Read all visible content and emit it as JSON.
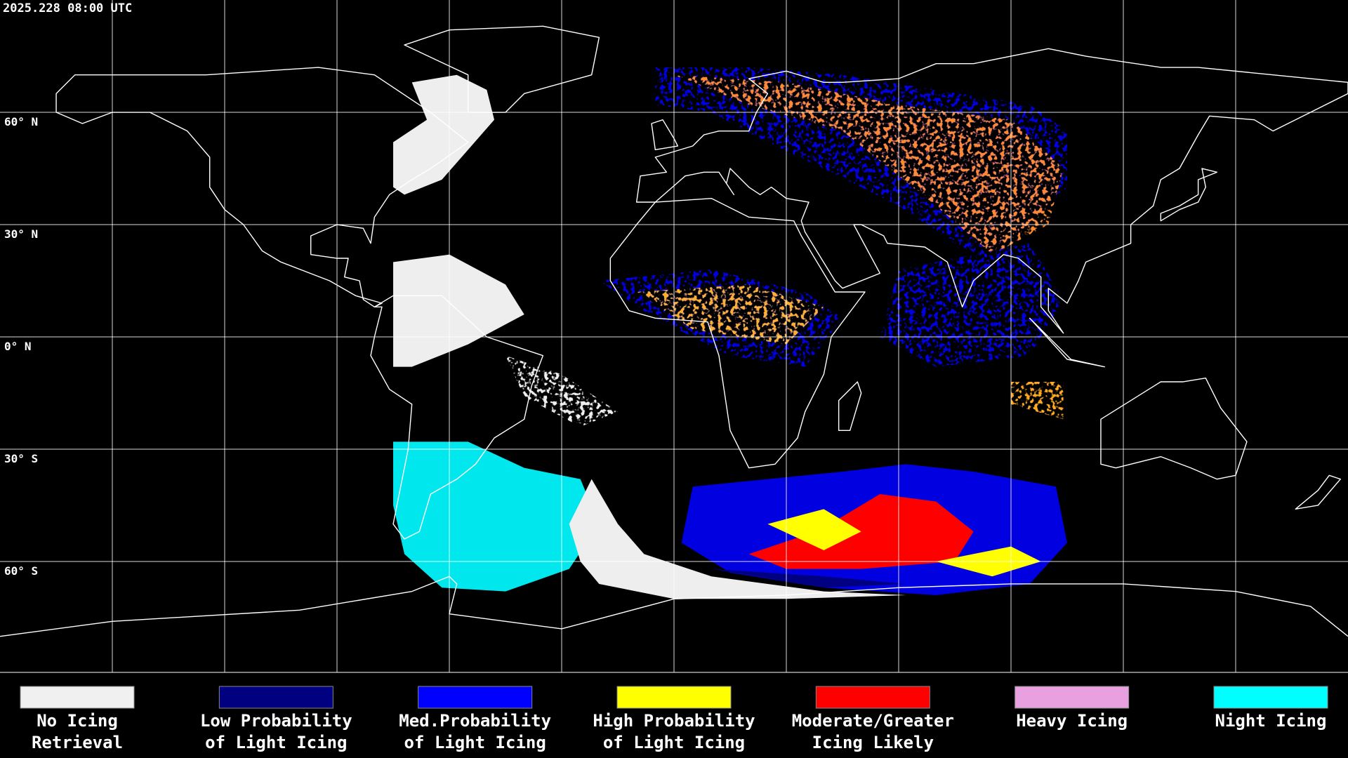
{
  "header": {
    "timestamp": "2025.228 08:00 UTC"
  },
  "map": {
    "latitude_labels": [
      "60° N",
      "30° N",
      "0° N",
      "30° S",
      "60° S"
    ]
  },
  "legend": [
    {
      "label": [
        "No Icing",
        "Retrieval"
      ],
      "color": "#f0f0f0"
    },
    {
      "label": [
        "Low Probability",
        "of Light Icing"
      ],
      "color": "#000080"
    },
    {
      "label": [
        "Med.Probability",
        "of Light Icing"
      ],
      "color": "#0000ff"
    },
    {
      "label": [
        "High Probability",
        "of Light Icing"
      ],
      "color": "#ffff00"
    },
    {
      "label": [
        "Moderate/Greater",
        "Icing Likely"
      ],
      "color": "#ff0000"
    },
    {
      "label": [
        "Heavy Icing"
      ],
      "color": "#e8a0e0"
    },
    {
      "label": [
        "Night Icing"
      ],
      "color": "#00ffff"
    }
  ]
}
